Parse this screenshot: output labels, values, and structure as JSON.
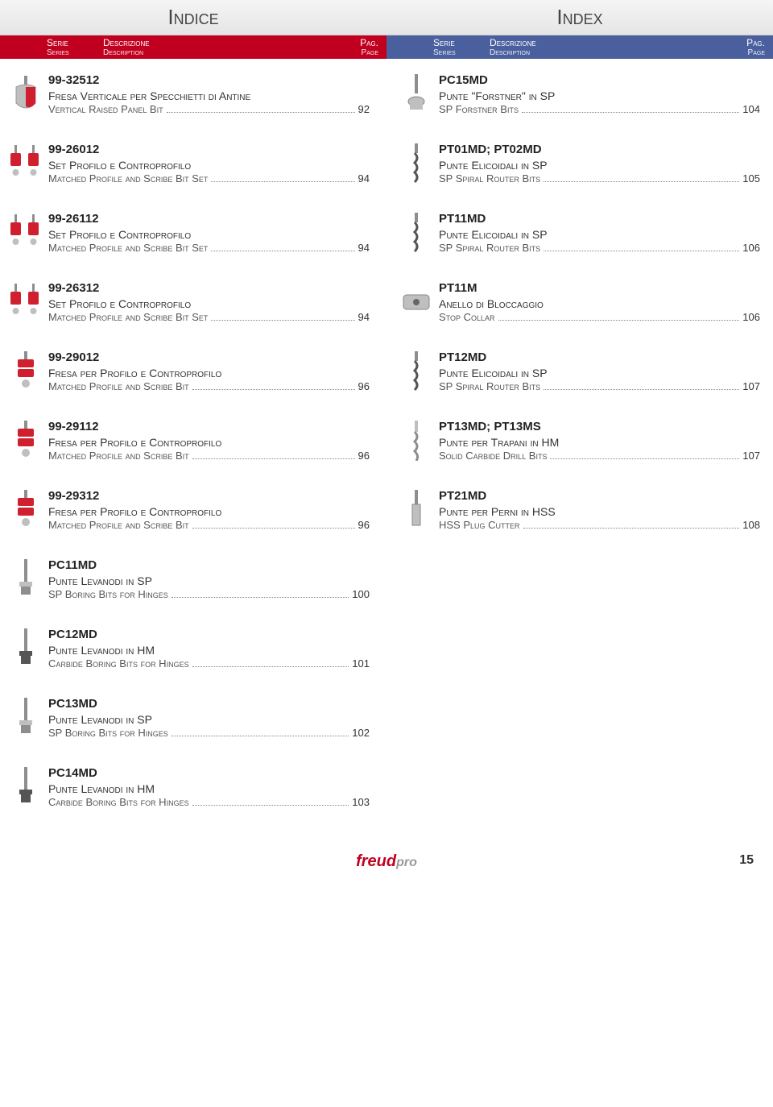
{
  "titles": {
    "left": "Indice",
    "right": "Index"
  },
  "headers": {
    "serie": "Serie",
    "series": "Series",
    "descrizione": "Descrizione",
    "description": "Description",
    "pag": "Pag.",
    "page": "Page"
  },
  "colors": {
    "band_left": "#c1001f",
    "band_right": "#4a5f9e",
    "tool_red": "#d02030",
    "tool_grey": "#8e8e8e",
    "tool_dark": "#555555",
    "tool_silver": "#bfbfbf"
  },
  "left": [
    {
      "series": "99-32512",
      "it": "Fresa Verticale per Specchietti di Antine",
      "en": "Vertical Raised Panel Bit",
      "pg": "92",
      "icon": "raised-panel"
    },
    {
      "series": "99-26012",
      "it": "Set Profilo e Controprofilo",
      "en": "Matched Profile and Scribe Bit Set",
      "pg": "94",
      "icon": "set-red-2"
    },
    {
      "series": "99-26112",
      "it": "Set Profilo e Controprofilo",
      "en": "Matched Profile and Scribe Bit Set",
      "pg": "94",
      "icon": "set-red-2"
    },
    {
      "series": "99-26312",
      "it": "Set Profilo e Controprofilo",
      "en": "Matched Profile and Scribe Bit Set",
      "pg": "94",
      "icon": "set-red-2"
    },
    {
      "series": "99-29012",
      "it": "Fresa per Profilo e Controprofilo",
      "en": "Matched Profile and Scribe Bit",
      "pg": "96",
      "icon": "fresa-red"
    },
    {
      "series": "99-29112",
      "it": "Fresa per Profilo e Controprofilo",
      "en": "Matched Profile and Scribe Bit",
      "pg": "96",
      "icon": "fresa-red"
    },
    {
      "series": "99-29312",
      "it": "Fresa per Profilo e Controprofilo",
      "en": "Matched Profile and Scribe Bit",
      "pg": "96",
      "icon": "fresa-red"
    },
    {
      "series": "PC11MD",
      "it": "Punte Levanodi in SP",
      "en": "SP Boring Bits for Hinges",
      "pg": "100",
      "icon": "boring-sp"
    },
    {
      "series": "PC12MD",
      "it": "Punte Levanodi in HM",
      "en": "Carbide Boring Bits for Hinges",
      "pg": "101",
      "icon": "boring-hm"
    },
    {
      "series": "PC13MD",
      "it": "Punte Levanodi in SP",
      "en": "SP Boring Bits for Hinges",
      "pg": "102",
      "icon": "boring-sp"
    },
    {
      "series": "PC14MD",
      "it": "Punte Levanodi in HM",
      "en": "Carbide Boring Bits for Hinges",
      "pg": "103",
      "icon": "boring-hm"
    }
  ],
  "right": [
    {
      "series": "PC15MD",
      "it": "Punte \"Forstner\" in SP",
      "en": "SP Forstner Bits",
      "pg": "104",
      "icon": "forstner"
    },
    {
      "series": "PT01MD; PT02MD",
      "it": "Punte Elicoidali in SP",
      "en": "SP Spiral Router Bits",
      "pg": "105",
      "icon": "spiral"
    },
    {
      "series": "PT11MD",
      "it": "Punte Elicoidali in SP",
      "en": "SP Spiral Router Bits",
      "pg": "106",
      "icon": "spiral"
    },
    {
      "series": "PT11M",
      "it": "Anello di Bloccaggio",
      "en": "Stop Collar",
      "pg": "106",
      "icon": "collar"
    },
    {
      "series": "PT12MD",
      "it": "Punte Elicoidali in SP",
      "en": "SP Spiral Router Bits",
      "pg": "107",
      "icon": "spiral"
    },
    {
      "series": "PT13MD; PT13MS",
      "it": "Punte per Trapani in HM",
      "en": "Solid Carbide Drill Bits",
      "pg": "107",
      "icon": "drill"
    },
    {
      "series": "PT21MD",
      "it": "Punte per Perni in HSS",
      "en": "HSS Plug Cutter",
      "pg": "108",
      "icon": "plug"
    }
  ],
  "footer": {
    "page": "15",
    "logo1": "freud",
    "logo2": "pro"
  }
}
